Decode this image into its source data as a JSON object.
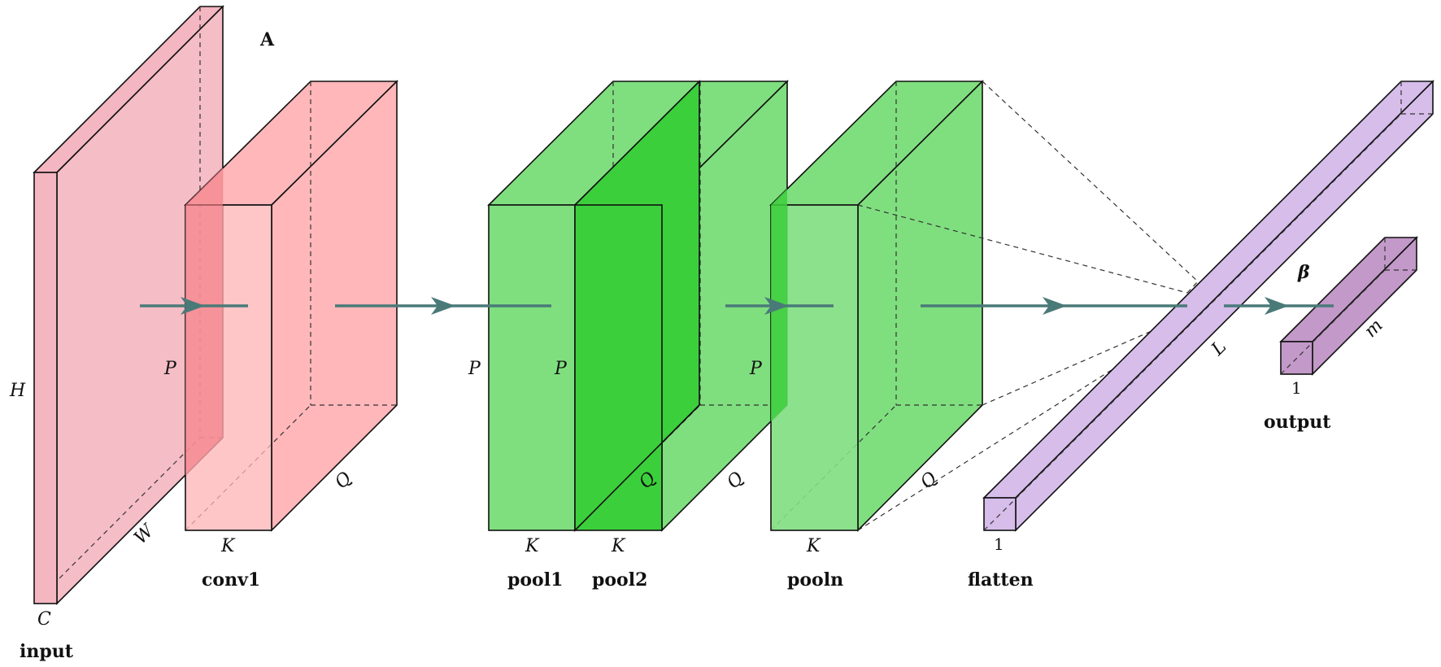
{
  "panel_label": "A",
  "layers": [
    {
      "id": "input",
      "name": "input",
      "color": "#f4b6c0",
      "dims": [
        "H",
        "W",
        "C"
      ]
    },
    {
      "id": "conv1",
      "name": "conv1",
      "color": "#ffb3b6",
      "dims": [
        "P",
        "K",
        "Q"
      ]
    },
    {
      "id": "pool1",
      "name": "pool1",
      "color": "#7fdf7f",
      "dims": [
        "P",
        "K"
      ]
    },
    {
      "id": "pool2",
      "name": "pool2",
      "color": "#3ccf3c",
      "dims": [
        "P",
        "K",
        "Q",
        "Q"
      ]
    },
    {
      "id": "pooln",
      "name": "pooln",
      "color": "#7fdf7f",
      "dims": [
        "P",
        "K",
        "Q"
      ]
    },
    {
      "id": "flatten",
      "name": "flatten",
      "color": "#d6bdea",
      "dims": [
        "1",
        "L"
      ]
    },
    {
      "id": "output",
      "name": "output",
      "color": "#c299c8",
      "dims": [
        "1",
        "m"
      ]
    }
  ],
  "output_symbol": "β",
  "arrow_color": "#4a7a78"
}
